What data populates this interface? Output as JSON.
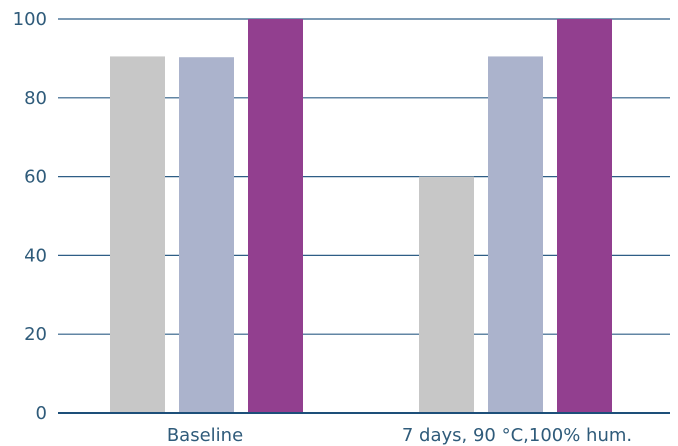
{
  "chart_data": {
    "type": "bar",
    "title": "",
    "xlabel": "",
    "ylabel": "",
    "ylim": [
      0,
      100
    ],
    "yticks": [
      0,
      20,
      40,
      60,
      80,
      100
    ],
    "grid": true,
    "categories": [
      "Baseline",
      "7 days, 90 °C,100% hum."
    ],
    "series": [
      {
        "color": "#c7c7c7",
        "values": [
          90.5,
          60
        ]
      },
      {
        "color": "#abb3cc",
        "values": [
          90.3,
          90.5
        ]
      },
      {
        "color": "#923f8f",
        "values": [
          100,
          100
        ]
      }
    ]
  },
  "colors": {
    "gridline": "#2e5e86",
    "axis": "#1d4f79",
    "text": "#2f5b7a"
  }
}
